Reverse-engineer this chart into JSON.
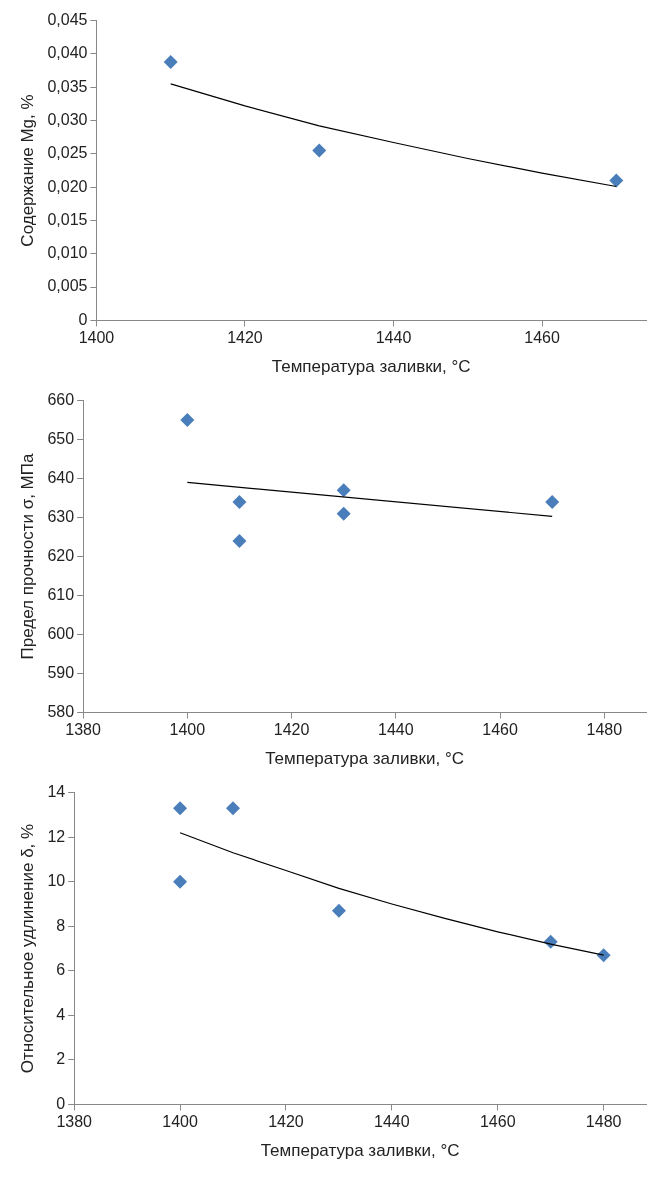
{
  "chart_data": [
    {
      "type": "scatter",
      "xlabel": "Температура заливки, °C",
      "ylabel": "Содержание Mg, %",
      "xlim": [
        1400,
        1474
      ],
      "xticks": [
        1400,
        1420,
        1440,
        1460
      ],
      "ylim": [
        0,
        0.045
      ],
      "yticks": [
        0,
        {
          "value": 0.005,
          "label": "0,005"
        },
        {
          "value": 0.01,
          "label": "0,010"
        },
        {
          "value": 0.015,
          "label": "0,015"
        },
        {
          "value": 0.02,
          "label": "0,020"
        },
        {
          "value": 0.025,
          "label": "0,025"
        },
        {
          "value": 0.03,
          "label": "0,030"
        },
        {
          "value": 0.035,
          "label": "0,035"
        },
        {
          "value": 0.04,
          "label": "0,040"
        },
        {
          "value": 0.045,
          "label": "0,045"
        }
      ],
      "grid": false,
      "legend": false,
      "series": [
        {
          "type": "scatter",
          "marker": "diamond",
          "color": "#4a7ebb",
          "x": [
            1410,
            1430,
            1470
          ],
          "values": [
            0.0388,
            0.0255,
            0.021
          ]
        },
        {
          "type": "line",
          "marker": "none",
          "line_style": "solid",
          "color": "#000000",
          "x": [
            1410,
            1420,
            1430,
            1440,
            1450,
            1460,
            1470
          ],
          "values": [
            0.0355,
            0.0322,
            0.0292,
            0.0267,
            0.0243,
            0.0221,
            0.0201
          ]
        }
      ]
    },
    {
      "type": "scatter",
      "xlabel": "Температура заливки, °C",
      "ylabel": "Предел прочности σ, МПа",
      "xlim": [
        1380,
        1488
      ],
      "xticks": [
        1380,
        1400,
        1420,
        1440,
        1460,
        1480
      ],
      "ylim": [
        580,
        660
      ],
      "yticks": [
        580,
        590,
        600,
        610,
        620,
        630,
        640,
        650,
        660
      ],
      "grid": false,
      "legend": false,
      "series": [
        {
          "type": "scatter",
          "marker": "diamond",
          "color": "#4a7ebb",
          "x": [
            1400,
            1410,
            1410,
            1430,
            1430,
            1470
          ],
          "values": [
            655,
            634,
            624,
            637,
            631,
            634
          ]
        },
        {
          "type": "line",
          "marker": "none",
          "line_style": "solid",
          "color": "#000000",
          "x": [
            1400,
            1470
          ],
          "values": [
            639,
            630.3
          ]
        }
      ]
    },
    {
      "type": "scatter",
      "xlabel": "Температура заливки, °C",
      "ylabel": "Относительное удлинение δ, %",
      "xlim": [
        1380,
        1488
      ],
      "xticks": [
        1380,
        1400,
        1420,
        1440,
        1460,
        1480
      ],
      "ylim": [
        0,
        14
      ],
      "yticks": [
        0,
        2,
        4,
        6,
        8,
        10,
        12,
        14
      ],
      "grid": false,
      "legend": false,
      "series": [
        {
          "type": "scatter",
          "marker": "diamond",
          "color": "#4a7ebb",
          "x": [
            1400,
            1400,
            1410,
            1430,
            1470,
            1480
          ],
          "values": [
            13.3,
            10,
            13.3,
            8.7,
            7.3,
            6.7
          ]
        },
        {
          "type": "line",
          "marker": "none",
          "line_style": "solid",
          "color": "#000000",
          "x": [
            1400,
            1410,
            1420,
            1430,
            1440,
            1450,
            1460,
            1470,
            1480
          ],
          "values": [
            12.2,
            11.3,
            10.5,
            9.7,
            9.0,
            8.35,
            7.75,
            7.2,
            6.7
          ]
        }
      ]
    }
  ]
}
